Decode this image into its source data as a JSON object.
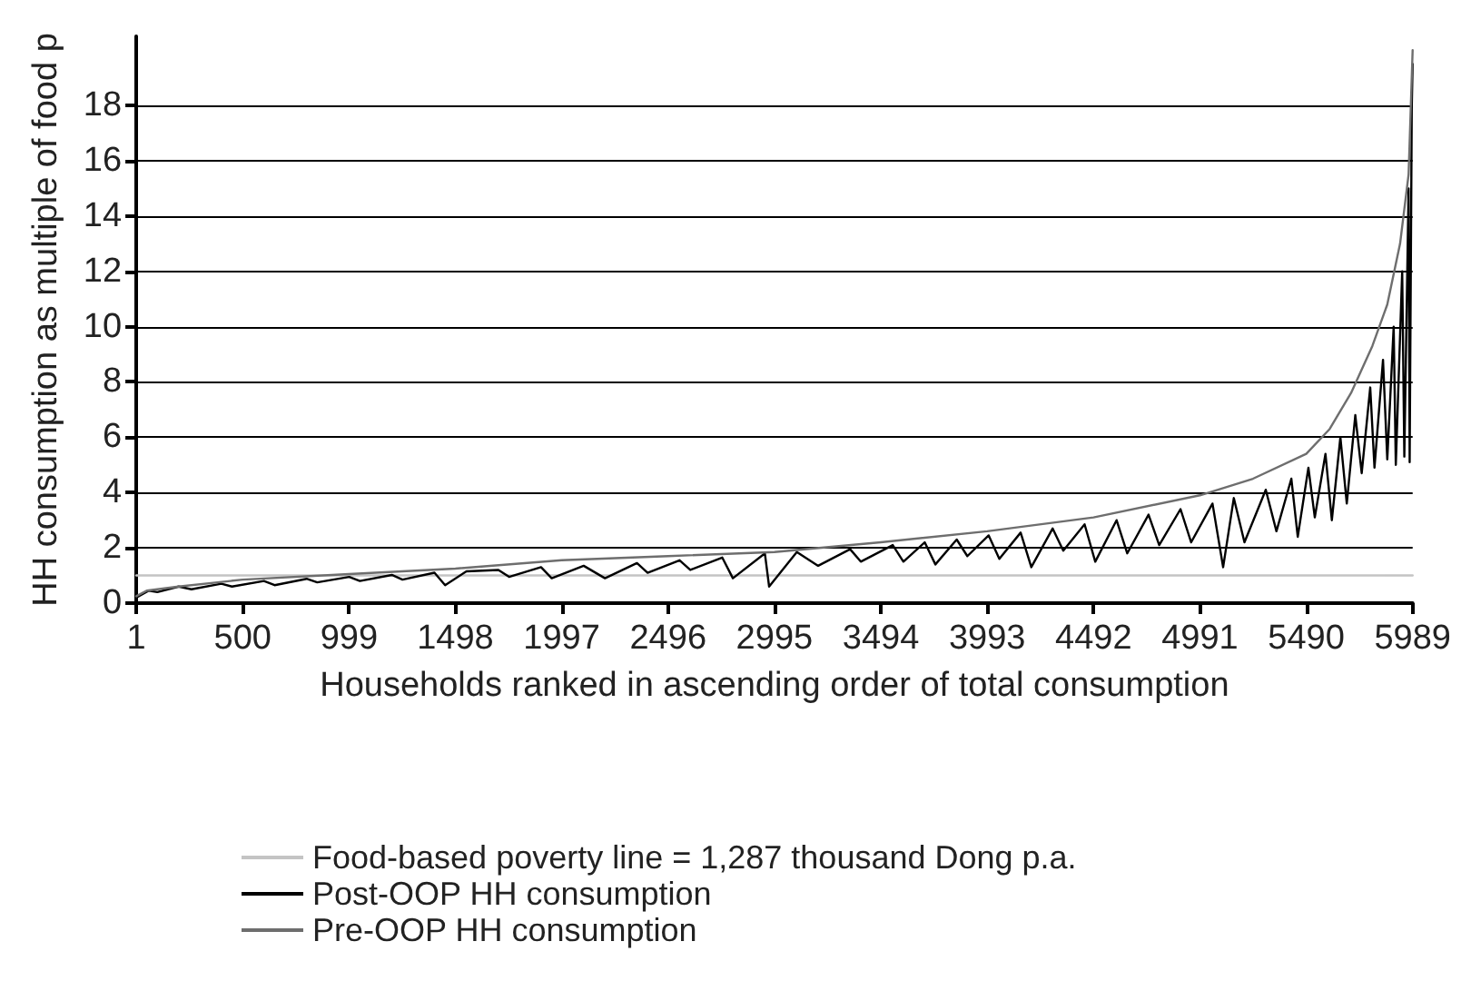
{
  "chart_data": {
    "type": "line",
    "xlabel": "Households ranked in ascending order of total consumption",
    "ylabel": "HH consumption as multiple of food p",
    "xlim": [
      1,
      5989
    ],
    "xticks": [
      1,
      500,
      999,
      1498,
      1997,
      2496,
      2995,
      3494,
      3993,
      4492,
      4991,
      5490,
      5989
    ],
    "ylim": [
      0,
      20.5
    ],
    "yticks": [
      0,
      2,
      4,
      6,
      8,
      10,
      12,
      14,
      16,
      18
    ],
    "grid": "y",
    "legend": "bottom",
    "marker": "none",
    "line_style": "solid",
    "series": [
      {
        "name": "Food-based poverty line = 1,287 thousand Dong p.a.",
        "color": "#c4c4c4",
        "x": [
          1,
          5989
        ],
        "values": [
          1,
          1
        ]
      },
      {
        "name": "Post-OOP HH consumption",
        "color": "#000000",
        "x": [
          1,
          60,
          100,
          200,
          260,
          400,
          450,
          600,
          650,
          800,
          850,
          1000,
          1050,
          1200,
          1250,
          1400,
          1450,
          1550,
          1700,
          1750,
          1900,
          1950,
          2100,
          2200,
          2350,
          2400,
          2550,
          2600,
          2750,
          2800,
          2950,
          2970,
          3100,
          3200,
          3350,
          3400,
          3550,
          3600,
          3700,
          3750,
          3850,
          3900,
          4000,
          4050,
          4150,
          4200,
          4300,
          4350,
          4450,
          4500,
          4600,
          4650,
          4750,
          4800,
          4900,
          4950,
          5050,
          5100,
          5150,
          5200,
          5300,
          5350,
          5420,
          5450,
          5500,
          5530,
          5580,
          5610,
          5650,
          5680,
          5720,
          5750,
          5790,
          5810,
          5850,
          5870,
          5900,
          5910,
          5940,
          5950,
          5970,
          5975,
          5985,
          5989
        ],
        "values": [
          0.2,
          0.45,
          0.4,
          0.6,
          0.5,
          0.7,
          0.6,
          0.8,
          0.65,
          0.88,
          0.75,
          0.95,
          0.8,
          1.02,
          0.85,
          1.1,
          0.65,
          1.15,
          1.2,
          0.95,
          1.3,
          0.9,
          1.35,
          0.9,
          1.45,
          1.1,
          1.55,
          1.2,
          1.65,
          0.9,
          1.8,
          0.6,
          1.85,
          1.35,
          1.95,
          1.5,
          2.1,
          1.5,
          2.2,
          1.4,
          2.3,
          1.7,
          2.45,
          1.6,
          2.55,
          1.3,
          2.7,
          1.9,
          2.85,
          1.5,
          3.0,
          1.8,
          3.2,
          2.1,
          3.4,
          2.2,
          3.6,
          1.3,
          3.8,
          2.2,
          4.1,
          2.6,
          4.5,
          2.4,
          4.9,
          3.1,
          5.4,
          3.0,
          6.0,
          3.6,
          6.8,
          4.7,
          7.8,
          4.9,
          8.8,
          5.2,
          10.0,
          5.0,
          12,
          5.3,
          15,
          5.1,
          18,
          19.5
        ]
      },
      {
        "name": "Pre-OOP HH consumption",
        "color": "#6e6e6e",
        "x": [
          1,
          50,
          200,
          500,
          999,
          1498,
          1997,
          2496,
          2995,
          3494,
          3993,
          4492,
          4991,
          5240,
          5490,
          5600,
          5700,
          5800,
          5870,
          5930,
          5970,
          5989
        ],
        "values": [
          0.25,
          0.45,
          0.6,
          0.85,
          1.05,
          1.25,
          1.55,
          1.7,
          1.85,
          2.2,
          2.6,
          3.1,
          3.9,
          4.5,
          5.4,
          6.3,
          7.6,
          9.3,
          10.8,
          13,
          15.5,
          20
        ]
      }
    ]
  }
}
